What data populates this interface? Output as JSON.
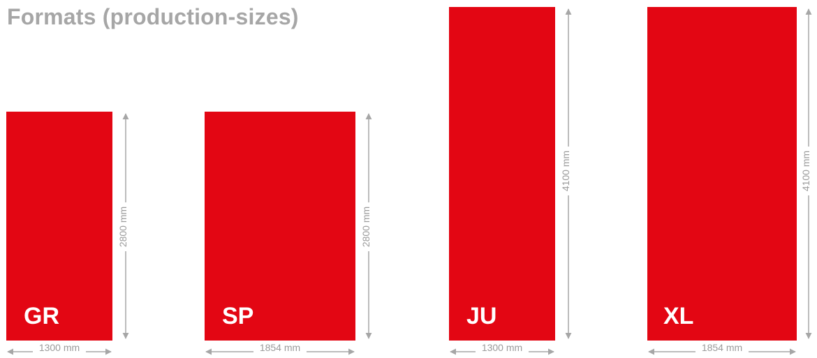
{
  "title": "Formats (production-sizes)",
  "colors": {
    "panel": "#e30613",
    "dimension_line": "#a6a6a6",
    "title": "#a6a6a6"
  },
  "formats": [
    {
      "code": "GR",
      "width_label": "1300 mm",
      "height_label": "2800 mm",
      "width_mm": 1300,
      "height_mm": 2800
    },
    {
      "code": "SP",
      "width_label": "1854 mm",
      "height_label": "2800 mm",
      "width_mm": 1854,
      "height_mm": 2800
    },
    {
      "code": "JU",
      "width_label": "1300 mm",
      "height_label": "4100 mm",
      "width_mm": 1300,
      "height_mm": 4100
    },
    {
      "code": "XL",
      "width_label": "1854 mm",
      "height_label": "4100 mm",
      "width_mm": 1854,
      "height_mm": 4100
    }
  ]
}
